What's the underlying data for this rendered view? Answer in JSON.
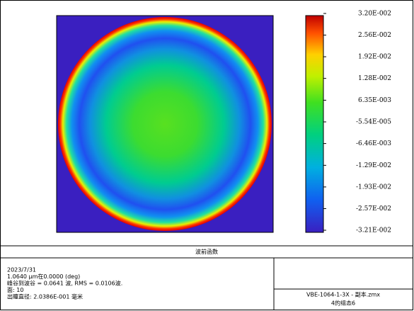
{
  "chart_data": {
    "type": "heatmap",
    "zlim": [
      -0.0321,
      0.032
    ],
    "zticks": [
      {
        "value": 0.032,
        "label": "3.20E-002"
      },
      {
        "value": 0.0256,
        "label": "2.56E-002"
      },
      {
        "value": 0.0192,
        "label": "1.92E-002"
      },
      {
        "value": 0.0128,
        "label": "1.28E-002"
      },
      {
        "value": 0.00635,
        "label": "6.35E-003"
      },
      {
        "value": -5.54e-05,
        "label": "-5.54E-005"
      },
      {
        "value": -0.00646,
        "label": "-6.46E-003"
      },
      {
        "value": -0.0129,
        "label": "-1.29E-002"
      },
      {
        "value": -0.0193,
        "label": "-1.93E-002"
      },
      {
        "value": -0.0257,
        "label": "-2.57E-002"
      },
      {
        "value": -0.0321,
        "label": "-3.21E-002"
      }
    ]
  },
  "panel": {
    "title": "波前函数",
    "info": [
      "2023/7/31",
      "1.0640 µm在0.0000 (deg)",
      "峰谷到波谷 = 0.0641 波, RMS = 0.0106波.",
      "面: 10",
      "出瞳直径: 2.0386E-001 毫米"
    ],
    "file": "VBE-1064-1-3X - 副本.zmx",
    "config": "4的组态6"
  }
}
